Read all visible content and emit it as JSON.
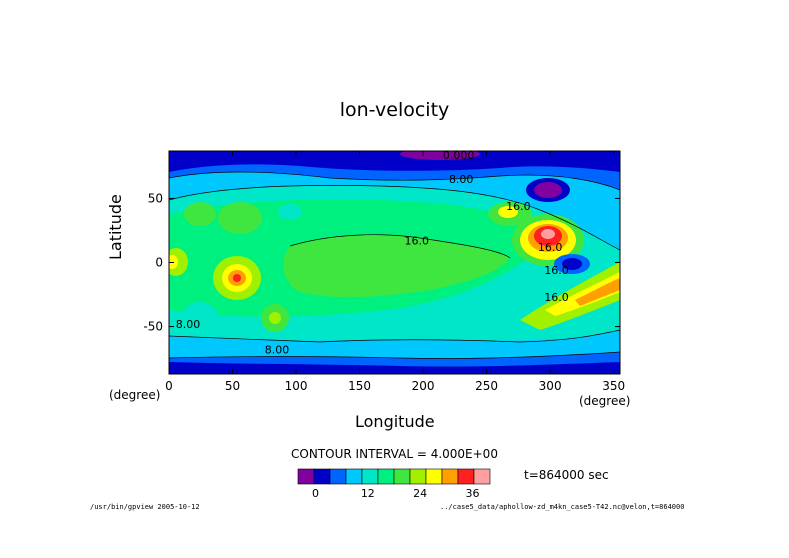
{
  "chart_data": {
    "type": "heatmap",
    "title": "lon-velocity",
    "xlabel": "Longitude",
    "ylabel": "Latitude",
    "x_unit": "(degree)",
    "y_unit": "(degree)",
    "xlim": [
      0,
      355
    ],
    "ylim": [
      -87,
      87
    ],
    "x_ticks": [
      "0",
      "50",
      "100",
      "150",
      "200",
      "250",
      "300",
      "350"
    ],
    "y_ticks": [
      "50",
      "0",
      "-50"
    ],
    "contour_interval_label": "CONTOUR INTERVAL = 4.000E+00",
    "contour_labels": [
      "0.000",
      "8.00",
      "16.0",
      "16.0",
      "16.0",
      "16.0",
      "16.0",
      "8.00",
      "8.00"
    ],
    "colorbar": {
      "levels": [
        -4,
        0,
        4,
        8,
        12,
        16,
        20,
        24,
        28,
        32,
        36,
        40
      ],
      "tick_labels": [
        "0",
        "12",
        "24",
        "36"
      ],
      "colors": [
        "#8000a0",
        "#0000c8",
        "#0064ff",
        "#00c8ff",
        "#00e6c8",
        "#00f080",
        "#40e640",
        "#a0f000",
        "#ffff00",
        "#ffa000",
        "#ff2020",
        "#ffa0a0"
      ]
    },
    "grid": false,
    "annotation_time": "t=864000 sec",
    "footer_left": "/usr/bin/gpview  2005-10-12",
    "footer_right": "../case5_data/aphollow-zd_m4kn_case5-T42.nc@velon,t=864000"
  }
}
